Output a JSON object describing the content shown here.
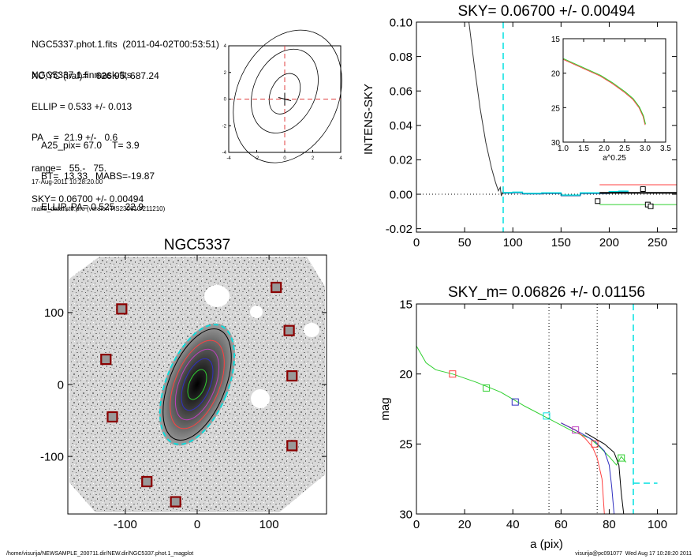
{
  "header": {
    "lines_a": [
      "NGC5337.phot.1.fits  (2011-04-02T00:53:51)",
      "NGC5337.1.finmask.fits"
    ],
    "lines_b": [
      "XC,YC (iraf)=   626.95, 687.24",
      "ELLIP = 0.533 +/- 0.013",
      "PA    =  21.9 +/-   0.6",
      "range=   55.-   75.",
      "SKY= 0.06700 +/- 0.00494"
    ],
    "lines_c": [
      "A25_pix= 67.0    T= 3.9",
      "BT=  13.33   MABS=-19.87",
      "ELLIP, PA= 0.525    22.9"
    ],
    "date": "17-Aug-2011 10:28:20.00",
    "program": "make_datalist0.pro (version HS230610/211210)"
  },
  "footer": {
    "left": "/home/visurija/NEWSAMPLE_200711.dir/NEW.dir/NGC5337.phot.1_magplot",
    "right": "visurija@pc091077  Wed Aug 17 10:28:20 2011"
  },
  "colors": {
    "cyan": "#00e0e0",
    "red": "#ff4040",
    "green": "#30d030",
    "blue": "#3030c0",
    "purple": "#c040c0"
  },
  "chart_data": [
    {
      "id": "contour",
      "type": "line",
      "xlim": [
        -4,
        4
      ],
      "ylim": [
        -4,
        4
      ],
      "xticks": [
        "-4",
        "-2",
        "0",
        "2",
        "4"
      ],
      "yticks": [
        "-4",
        "-2",
        "0",
        "2",
        "4"
      ],
      "crosshair": [
        0,
        0
      ],
      "contours": [
        {
          "cx": 0,
          "cy": 0.4,
          "rx": 1.0,
          "ry": 1.6,
          "rot": 25
        },
        {
          "cx": 0,
          "cy": 0.6,
          "rx": 2.2,
          "ry": 3.3,
          "rot": 25
        },
        {
          "cx": 0.2,
          "cy": 0.2,
          "rx": 3.6,
          "ry": 5.2,
          "rot": 25
        }
      ]
    },
    {
      "id": "sky",
      "type": "line",
      "title": "SKY= 0.06700 +/- 0.00494",
      "xlabel": "",
      "ylabel": "INTENS-SKY",
      "xlim": [
        0,
        270
      ],
      "ylim": [
        -0.022,
        0.1
      ],
      "xticks": [
        "0",
        "50",
        "100",
        "150",
        "200",
        "250"
      ],
      "yticks": [
        "-0.02",
        "0.00",
        "0.02",
        "0.04",
        "0.06",
        "0.08",
        "0.10"
      ],
      "vline": 90,
      "profile": [
        [
          54,
          0.102
        ],
        [
          60,
          0.075
        ],
        [
          66,
          0.05
        ],
        [
          72,
          0.03
        ],
        [
          78,
          0.015
        ],
        [
          82,
          0.007
        ],
        [
          85,
          0.002
        ],
        [
          87,
          0.004
        ],
        [
          88,
          -0.001
        ],
        [
          89,
          0.001
        ],
        [
          90,
          0.0
        ]
      ],
      "outer_steps": [
        [
          90,
          0.001
        ],
        [
          100,
          0.0012
        ],
        [
          110,
          0.0005
        ],
        [
          130,
          0.0008
        ],
        [
          150,
          -0.0005
        ],
        [
          170,
          0.0008
        ],
        [
          190,
          0.0008
        ],
        [
          200,
          0.0015
        ],
        [
          210,
          0.0018
        ],
        [
          220,
          0.0018
        ]
      ],
      "boxes": [
        [
          188,
          -0.004
        ],
        [
          235,
          0.003
        ],
        [
          240,
          -0.006
        ],
        [
          243,
          -0.007
        ]
      ],
      "hlines": [
        {
          "y": 0.0055,
          "from": 190,
          "color": "red"
        },
        {
          "y": 0.0008,
          "from": 190,
          "color": "black"
        },
        {
          "y": -0.006,
          "from": 190,
          "color": "green"
        }
      ],
      "inset": {
        "xlabel": "a^0.25",
        "xlim": [
          1.0,
          3.5
        ],
        "ylim": [
          15,
          30
        ],
        "xticks": [
          "1.0",
          "1.5",
          "2.0",
          "2.5",
          "3.0",
          "3.5"
        ],
        "yticks": [
          "15",
          "20",
          "25",
          "30"
        ],
        "curve": [
          [
            1.0,
            18.0
          ],
          [
            1.3,
            18.8
          ],
          [
            1.6,
            19.6
          ],
          [
            1.9,
            20.4
          ],
          [
            2.2,
            21.5
          ],
          [
            2.5,
            22.8
          ],
          [
            2.7,
            23.8
          ],
          [
            2.85,
            25.0
          ],
          [
            2.95,
            26.3
          ],
          [
            3.0,
            27.5
          ]
        ]
      }
    },
    {
      "id": "image",
      "type": "scatter",
      "title": "NGC5337",
      "xlim": [
        -180,
        180
      ],
      "ylim": [
        -180,
        180
      ],
      "xticks": [
        "-100",
        "0",
        "100"
      ],
      "yticks": [
        "-100",
        "0",
        "100"
      ],
      "ellipses": [
        {
          "a": 88,
          "b": 43,
          "pa": 22,
          "color": "cyan"
        },
        {
          "a": 82,
          "b": 39,
          "pa": 22,
          "color": "black"
        },
        {
          "a": 65,
          "b": 31,
          "pa": 22,
          "color": "red"
        },
        {
          "a": 52,
          "b": 25,
          "pa": 22,
          "color": "purple"
        },
        {
          "a": 38,
          "b": 18,
          "pa": 22,
          "color": "blue"
        },
        {
          "a": 22,
          "b": 11,
          "pa": 22,
          "color": "green"
        }
      ],
      "stars": [
        [
          -105,
          105
        ],
        [
          -127,
          35
        ],
        [
          -118,
          -45
        ],
        [
          -70,
          -135
        ],
        [
          -30,
          -163
        ],
        [
          110,
          135
        ],
        [
          128,
          75
        ],
        [
          132,
          12
        ],
        [
          132,
          -85
        ]
      ]
    },
    {
      "id": "magplot",
      "type": "line",
      "title": "SKY_m=  0.06826 +/- 0.01156",
      "xlabel": "a (pix)",
      "ylabel": "mag",
      "xlim": [
        0,
        108
      ],
      "ylim": [
        15,
        30
      ],
      "xticks": [
        "0",
        "20",
        "40",
        "60",
        "80",
        "100"
      ],
      "yticks": [
        "15",
        "20",
        "25",
        "30"
      ],
      "vlines_dotted": [
        55,
        75
      ],
      "vline_dashed": 90,
      "sky_dash": {
        "x": [
          90,
          100
        ],
        "y": 27.8
      },
      "curves": [
        {
          "color": "green",
          "points": [
            [
              0,
              18.0
            ],
            [
              4,
              19.2
            ],
            [
              8,
              19.7
            ],
            [
              15,
              20.0
            ],
            [
              25,
              20.6
            ],
            [
              35,
              21.3
            ],
            [
              45,
              22.3
            ],
            [
              55,
              23.2
            ],
            [
              65,
              24.1
            ],
            [
              72,
              24.6
            ],
            [
              76,
              25.2
            ],
            [
              80,
              25.9
            ],
            [
              83,
              26.5
            ],
            [
              85,
              25.9
            ],
            [
              87,
              26.3
            ]
          ]
        },
        {
          "color": "red",
          "points": [
            [
              60,
              23.5
            ],
            [
              66,
              24.0
            ],
            [
              70,
              24.6
            ],
            [
              73,
              25.2
            ],
            [
              75,
              26.0
            ],
            [
              77,
              27.5
            ],
            [
              78,
              30.0
            ]
          ]
        },
        {
          "color": "blue",
          "points": [
            [
              60,
              23.5
            ],
            [
              68,
              24.2
            ],
            [
              74,
              24.8
            ],
            [
              78,
              25.5
            ],
            [
              80,
              26.5
            ],
            [
              81,
              28.0
            ],
            [
              82,
              30.0
            ]
          ]
        },
        {
          "color": "black",
          "points": [
            [
              70,
              24.2
            ],
            [
              78,
              25.0
            ],
            [
              82,
              25.6
            ],
            [
              84,
              26.5
            ],
            [
              85,
              28.5
            ],
            [
              86,
              30.0
            ]
          ]
        }
      ],
      "markers": [
        {
          "x": 15,
          "y": 20.0,
          "color": "red"
        },
        {
          "x": 29,
          "y": 21.0,
          "color": "green"
        },
        {
          "x": 41,
          "y": 22.0,
          "color": "blue"
        },
        {
          "x": 54,
          "y": 23.0,
          "color": "cyan"
        },
        {
          "x": 66,
          "y": 24.0,
          "color": "purple"
        },
        {
          "x": 74,
          "y": 25.0,
          "color": "red"
        },
        {
          "x": 85,
          "y": 26.0,
          "color": "green"
        }
      ]
    }
  ]
}
